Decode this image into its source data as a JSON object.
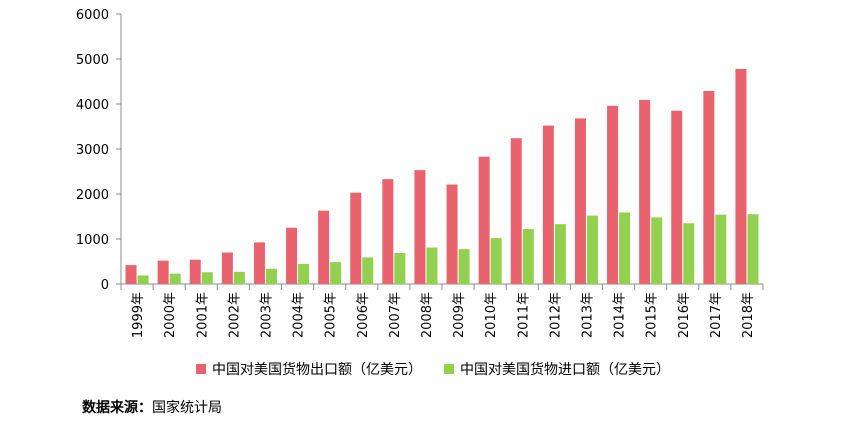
{
  "chart_data": {
    "type": "bar",
    "categories": [
      "1999年",
      "2000年",
      "2001年",
      "2002年",
      "2003年",
      "2004年",
      "2005年",
      "2006年",
      "2007年",
      "2008年",
      "2009年",
      "2010年",
      "2011年",
      "2012年",
      "2013年",
      "2014年",
      "2015年",
      "2016年",
      "2017年",
      "2018年"
    ],
    "series": [
      {
        "name": "中国对美国货物出口额（亿美元）",
        "color": "#e8636d",
        "values": [
          420,
          520,
          540,
          700,
          925,
          1250,
          1630,
          2030,
          2330,
          2530,
          2210,
          2830,
          3240,
          3520,
          3680,
          3960,
          4090,
          3850,
          4290,
          4780
        ]
      },
      {
        "name": "中国对美国货物进口额（亿美元）",
        "color": "#92d050",
        "values": [
          190,
          230,
          260,
          270,
          340,
          445,
          485,
          590,
          690,
          810,
          775,
          1020,
          1220,
          1330,
          1520,
          1590,
          1480,
          1350,
          1540,
          1550
        ]
      }
    ],
    "ylim": [
      0,
      6000
    ],
    "yticks": [
      0,
      1000,
      2000,
      3000,
      4000,
      5000,
      6000
    ],
    "legend_position": "bottom",
    "grid": false
  },
  "source": {
    "label": "数据来源：",
    "value": "国家统计局"
  }
}
